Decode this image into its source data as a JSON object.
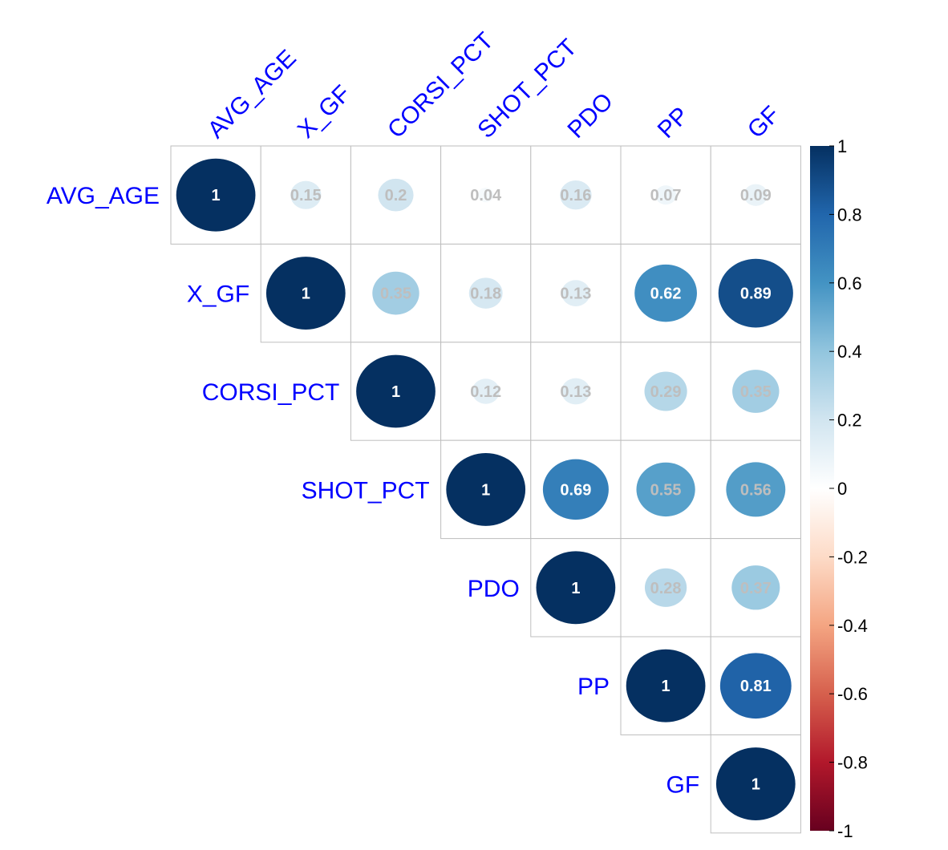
{
  "chart_data": {
    "type": "heatmap",
    "title": "",
    "variables": [
      "AVG_AGE",
      "X_GF",
      "CORSI_PCT",
      "SHOT_PCT",
      "PDO",
      "PP",
      "GF"
    ],
    "matrix_layout": "upper-triangle",
    "cells": [
      {
        "row": "AVG_AGE",
        "col": "AVG_AGE",
        "value": 1,
        "label": "1"
      },
      {
        "row": "AVG_AGE",
        "col": "X_GF",
        "value": 0.15,
        "label": "0.15"
      },
      {
        "row": "AVG_AGE",
        "col": "CORSI_PCT",
        "value": 0.2,
        "label": "0.2"
      },
      {
        "row": "AVG_AGE",
        "col": "SHOT_PCT",
        "value": 0.04,
        "label": "0.04"
      },
      {
        "row": "AVG_AGE",
        "col": "PDO",
        "value": 0.16,
        "label": "0.16"
      },
      {
        "row": "AVG_AGE",
        "col": "PP",
        "value": 0.07,
        "label": "0.07"
      },
      {
        "row": "AVG_AGE",
        "col": "GF",
        "value": 0.09,
        "label": "0.09"
      },
      {
        "row": "X_GF",
        "col": "X_GF",
        "value": 1,
        "label": "1"
      },
      {
        "row": "X_GF",
        "col": "CORSI_PCT",
        "value": 0.35,
        "label": "0.35"
      },
      {
        "row": "X_GF",
        "col": "SHOT_PCT",
        "value": 0.18,
        "label": "0.18"
      },
      {
        "row": "X_GF",
        "col": "PDO",
        "value": 0.13,
        "label": "0.13"
      },
      {
        "row": "X_GF",
        "col": "PP",
        "value": 0.62,
        "label": "0.62"
      },
      {
        "row": "X_GF",
        "col": "GF",
        "value": 0.89,
        "label": "0.89"
      },
      {
        "row": "CORSI_PCT",
        "col": "CORSI_PCT",
        "value": 1,
        "label": "1"
      },
      {
        "row": "CORSI_PCT",
        "col": "SHOT_PCT",
        "value": 0.12,
        "label": "0.12"
      },
      {
        "row": "CORSI_PCT",
        "col": "PDO",
        "value": 0.13,
        "label": "0.13"
      },
      {
        "row": "CORSI_PCT",
        "col": "PP",
        "value": 0.29,
        "label": "0.29"
      },
      {
        "row": "CORSI_PCT",
        "col": "GF",
        "value": 0.35,
        "label": "0.35"
      },
      {
        "row": "SHOT_PCT",
        "col": "SHOT_PCT",
        "value": 1,
        "label": "1"
      },
      {
        "row": "SHOT_PCT",
        "col": "PDO",
        "value": 0.69,
        "label": "0.69"
      },
      {
        "row": "SHOT_PCT",
        "col": "PP",
        "value": 0.55,
        "label": "0.55"
      },
      {
        "row": "SHOT_PCT",
        "col": "GF",
        "value": 0.56,
        "label": "0.56"
      },
      {
        "row": "PDO",
        "col": "PDO",
        "value": 1,
        "label": "1"
      },
      {
        "row": "PDO",
        "col": "PP",
        "value": 0.28,
        "label": "0.28"
      },
      {
        "row": "PDO",
        "col": "GF",
        "value": 0.37,
        "label": "0.37"
      },
      {
        "row": "PP",
        "col": "PP",
        "value": 1,
        "label": "1"
      },
      {
        "row": "PP",
        "col": "GF",
        "value": 0.81,
        "label": "0.81"
      },
      {
        "row": "GF",
        "col": "GF",
        "value": 1,
        "label": "1"
      }
    ],
    "colorbar": {
      "range": [
        -1,
        1
      ],
      "ticks": [
        1,
        0.8,
        0.6,
        0.4,
        0.2,
        0,
        -0.2,
        -0.4,
        -0.6,
        -0.8,
        -1
      ],
      "tick_labels": [
        "1",
        "0.8",
        "0.6",
        "0.4",
        "0.2",
        "0",
        "-0.2",
        "-0.4",
        "-0.6",
        "-0.8",
        "-1"
      ],
      "placement": "right",
      "colors": [
        "#67001F",
        "#B2182B",
        "#D6604D",
        "#F4A582",
        "#FDDBC7",
        "#FFFFFF",
        "#D1E5F0",
        "#92C5DE",
        "#4393C3",
        "#2166AC",
        "#053061"
      ]
    },
    "label_color": "#0000FF",
    "grid_color": "#BEBEBE",
    "diag_text_color": "#FFFFFF",
    "dark_text_color": "#FFFFFF",
    "light_text_color": "#BEBEBE"
  }
}
